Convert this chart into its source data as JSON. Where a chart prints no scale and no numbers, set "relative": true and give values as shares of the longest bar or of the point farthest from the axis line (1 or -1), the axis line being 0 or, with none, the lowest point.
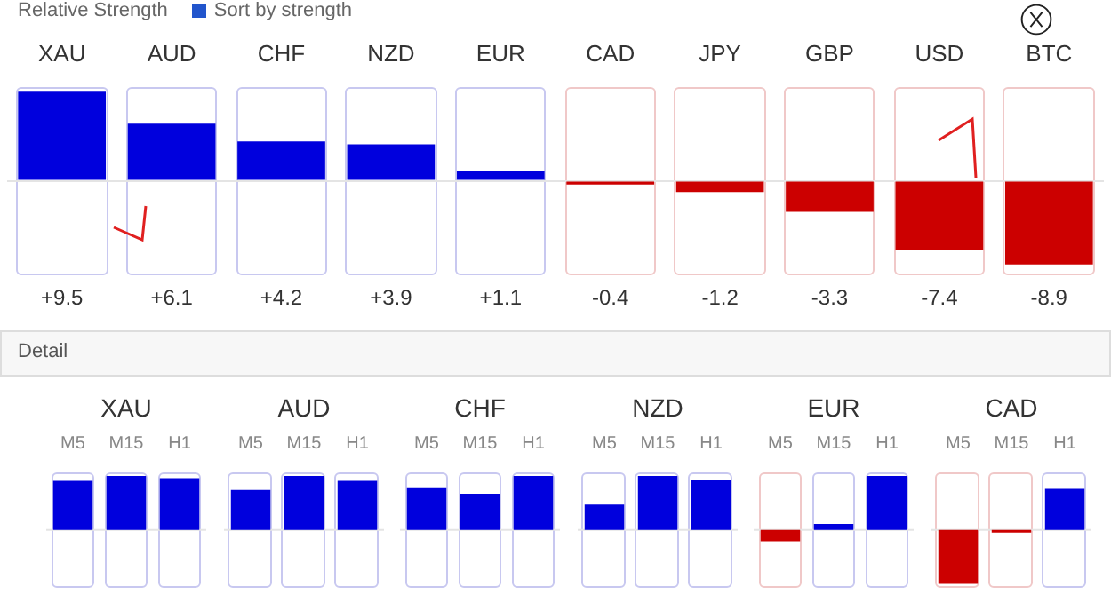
{
  "chart_data": [
    {
      "type": "bar",
      "title": "Relative Strength",
      "annotations": [
        "Sort by strength"
      ],
      "categories": [
        "XAU",
        "AUD",
        "CHF",
        "NZD",
        "EUR",
        "CAD",
        "JPY",
        "GBP",
        "USD",
        "BTC"
      ],
      "values": [
        9.5,
        6.1,
        4.2,
        3.9,
        1.1,
        -0.4,
        -1.2,
        -3.3,
        -7.4,
        -8.9
      ],
      "value_labels": [
        "+9.5",
        "+6.1",
        "+4.2",
        "+3.9",
        "+1.1",
        "-0.4",
        "-1.2",
        "-3.3",
        "-7.4",
        "-8.9"
      ],
      "colors": [
        "#0000dd",
        "#0000dd",
        "#0000dd",
        "#0000dd",
        "#0000dd",
        "#cc0000",
        "#cc0000",
        "#cc0000",
        "#cc0000",
        "#cc0000"
      ]
    },
    {
      "type": "bar",
      "title": "XAU",
      "annotations": [
        "Detail"
      ],
      "relative": true,
      "categories": [
        "M5",
        "M15",
        "H1"
      ],
      "values": [
        0.91,
        1,
        0.96
      ],
      "colors": [
        "#0000dd",
        "#0000dd",
        "#0000dd"
      ]
    },
    {
      "type": "bar",
      "title": "AUD",
      "relative": true,
      "categories": [
        "M5",
        "M15",
        "H1"
      ],
      "values": [
        0.74,
        1,
        0.91
      ],
      "colors": [
        "#0000dd",
        "#0000dd",
        "#0000dd"
      ]
    },
    {
      "type": "bar",
      "title": "CHF",
      "relative": true,
      "categories": [
        "M5",
        "M15",
        "H1"
      ],
      "values": [
        0.79,
        0.67,
        1
      ],
      "colors": [
        "#0000dd",
        "#0000dd",
        "#0000dd"
      ]
    },
    {
      "type": "bar",
      "title": "NZD",
      "relative": true,
      "categories": [
        "M5",
        "M15",
        "H1"
      ],
      "values": [
        0.47,
        1,
        0.92
      ],
      "colors": [
        "#0000dd",
        "#0000dd",
        "#0000dd"
      ]
    },
    {
      "type": "bar",
      "title": "EUR",
      "relative": true,
      "categories": [
        "M5",
        "M15",
        "H1"
      ],
      "values": [
        -0.21,
        0.11,
        1
      ],
      "colors": [
        "#cc0000",
        "#0000dd",
        "#0000dd"
      ]
    },
    {
      "type": "bar",
      "title": "CAD",
      "relative": true,
      "categories": [
        "M5",
        "M15",
        "H1"
      ],
      "values": [
        -1,
        -0.05,
        0.76
      ],
      "colors": [
        "#cc0000",
        "#cc0000",
        "#0000dd"
      ]
    }
  ]
}
